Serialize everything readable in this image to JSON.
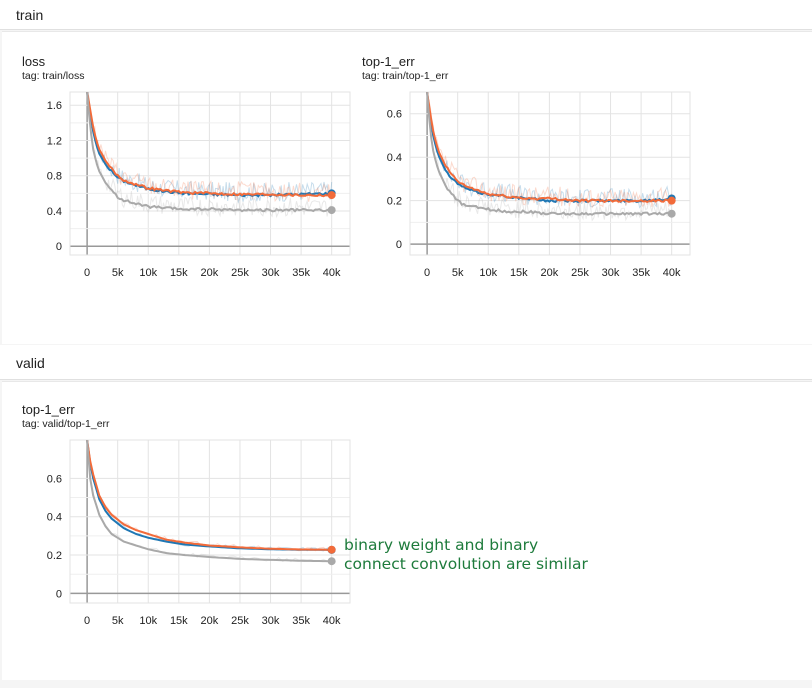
{
  "sections": {
    "train": "train",
    "valid": "valid"
  },
  "annotation": {
    "line1": "binary weight and binary",
    "line2": "connect convolution are similar"
  },
  "colors": {
    "blue": "#1f77b4",
    "orange": "#f26b3a",
    "gray": "#a9a9a9"
  },
  "chart_data": [
    {
      "id": "train-loss",
      "type": "line",
      "title": "loss",
      "tag": "tag: train/loss",
      "x_ticks": [
        "0",
        "5k",
        "10k",
        "15k",
        "20k",
        "25k",
        "30k",
        "35k",
        "40k"
      ],
      "y_ticks": [
        "0",
        "0.4",
        "0.8",
        "1.2",
        "1.6"
      ],
      "xlim": [
        -2800,
        43000
      ],
      "ylim": [
        -0.1,
        1.75
      ],
      "series": [
        {
          "color": "blue",
          "x": [
            0,
            500,
            1000,
            1500,
            2000,
            3000,
            4000,
            5000,
            6000,
            8000,
            10000,
            13000,
            16000,
            20000,
            25000,
            30000,
            35000,
            40000
          ],
          "y": [
            1.75,
            1.5,
            1.3,
            1.15,
            1.05,
            0.93,
            0.85,
            0.78,
            0.74,
            0.69,
            0.65,
            0.62,
            0.6,
            0.59,
            0.58,
            0.58,
            0.59,
            0.6
          ]
        },
        {
          "color": "orange",
          "x": [
            0,
            500,
            1000,
            1500,
            2000,
            3000,
            4000,
            5000,
            6000,
            8000,
            10000,
            13000,
            16000,
            20000,
            25000,
            30000,
            35000,
            40000
          ],
          "y": [
            1.75,
            1.55,
            1.35,
            1.2,
            1.1,
            0.97,
            0.88,
            0.8,
            0.75,
            0.7,
            0.66,
            0.63,
            0.61,
            0.6,
            0.59,
            0.59,
            0.58,
            0.58
          ]
        },
        {
          "color": "gray",
          "x": [
            0,
            500,
            1000,
            1500,
            2000,
            3000,
            4000,
            5000,
            6000,
            8000,
            10000,
            13000,
            16000,
            20000,
            25000,
            30000,
            35000,
            40000
          ],
          "y": [
            1.75,
            1.35,
            1.1,
            0.95,
            0.85,
            0.72,
            0.63,
            0.56,
            0.52,
            0.48,
            0.45,
            0.43,
            0.42,
            0.42,
            0.41,
            0.41,
            0.41,
            0.41
          ]
        }
      ]
    },
    {
      "id": "train-top1",
      "type": "line",
      "title": "top-1_err",
      "tag": "tag: train/top-1_err",
      "x_ticks": [
        "0",
        "5k",
        "10k",
        "15k",
        "20k",
        "25k",
        "30k",
        "35k",
        "40k"
      ],
      "y_ticks": [
        "0",
        "0.2",
        "0.4",
        "0.6"
      ],
      "xlim": [
        -2800,
        43000
      ],
      "ylim": [
        -0.05,
        0.7
      ],
      "series": [
        {
          "color": "blue",
          "x": [
            0,
            500,
            1000,
            1500,
            2000,
            3000,
            4000,
            5000,
            6000,
            8000,
            10000,
            13000,
            16000,
            20000,
            25000,
            30000,
            35000,
            40000
          ],
          "y": [
            0.7,
            0.58,
            0.5,
            0.44,
            0.4,
            0.34,
            0.3,
            0.28,
            0.26,
            0.24,
            0.23,
            0.22,
            0.21,
            0.2,
            0.2,
            0.2,
            0.2,
            0.21
          ]
        },
        {
          "color": "orange",
          "x": [
            0,
            500,
            1000,
            1500,
            2000,
            3000,
            4000,
            5000,
            6000,
            8000,
            10000,
            13000,
            16000,
            20000,
            25000,
            30000,
            35000,
            40000
          ],
          "y": [
            0.7,
            0.6,
            0.52,
            0.46,
            0.42,
            0.36,
            0.32,
            0.29,
            0.27,
            0.25,
            0.23,
            0.22,
            0.21,
            0.21,
            0.2,
            0.2,
            0.2,
            0.2
          ]
        },
        {
          "color": "gray",
          "x": [
            0,
            500,
            1000,
            1500,
            2000,
            3000,
            4000,
            5000,
            6000,
            8000,
            10000,
            13000,
            16000,
            20000,
            25000,
            30000,
            35000,
            40000
          ],
          "y": [
            0.7,
            0.52,
            0.43,
            0.37,
            0.33,
            0.27,
            0.23,
            0.2,
            0.18,
            0.17,
            0.16,
            0.15,
            0.15,
            0.14,
            0.14,
            0.14,
            0.14,
            0.14
          ]
        }
      ]
    },
    {
      "id": "valid-top1",
      "type": "line",
      "title": "top-1_err",
      "tag": "tag: valid/top-1_err",
      "x_ticks": [
        "0",
        "5k",
        "10k",
        "15k",
        "20k",
        "25k",
        "30k",
        "35k",
        "40k"
      ],
      "y_ticks": [
        "0",
        "0.2",
        "0.4",
        "0.6"
      ],
      "xlim": [
        -2800,
        43000
      ],
      "ylim": [
        -0.05,
        0.8
      ],
      "series": [
        {
          "color": "blue",
          "x": [
            0,
            500,
            1000,
            2000,
            3000,
            4000,
            6000,
            8000,
            10000,
            13000,
            16000,
            20000,
            25000,
            30000,
            35000,
            40000
          ],
          "y": [
            0.8,
            0.68,
            0.6,
            0.49,
            0.43,
            0.39,
            0.34,
            0.31,
            0.29,
            0.27,
            0.255,
            0.245,
            0.235,
            0.23,
            0.228,
            0.227
          ]
        },
        {
          "color": "orange",
          "x": [
            0,
            500,
            1000,
            2000,
            3000,
            4000,
            6000,
            8000,
            10000,
            13000,
            16000,
            20000,
            25000,
            30000,
            35000,
            40000
          ],
          "y": [
            0.8,
            0.69,
            0.62,
            0.51,
            0.45,
            0.41,
            0.36,
            0.33,
            0.31,
            0.28,
            0.265,
            0.25,
            0.24,
            0.233,
            0.229,
            0.228
          ]
        },
        {
          "color": "gray",
          "x": [
            0,
            500,
            1000,
            2000,
            3000,
            4000,
            6000,
            8000,
            10000,
            13000,
            16000,
            20000,
            25000,
            30000,
            35000,
            40000
          ],
          "y": [
            0.8,
            0.6,
            0.51,
            0.41,
            0.35,
            0.31,
            0.27,
            0.25,
            0.23,
            0.21,
            0.2,
            0.19,
            0.18,
            0.175,
            0.17,
            0.168
          ]
        }
      ]
    }
  ]
}
